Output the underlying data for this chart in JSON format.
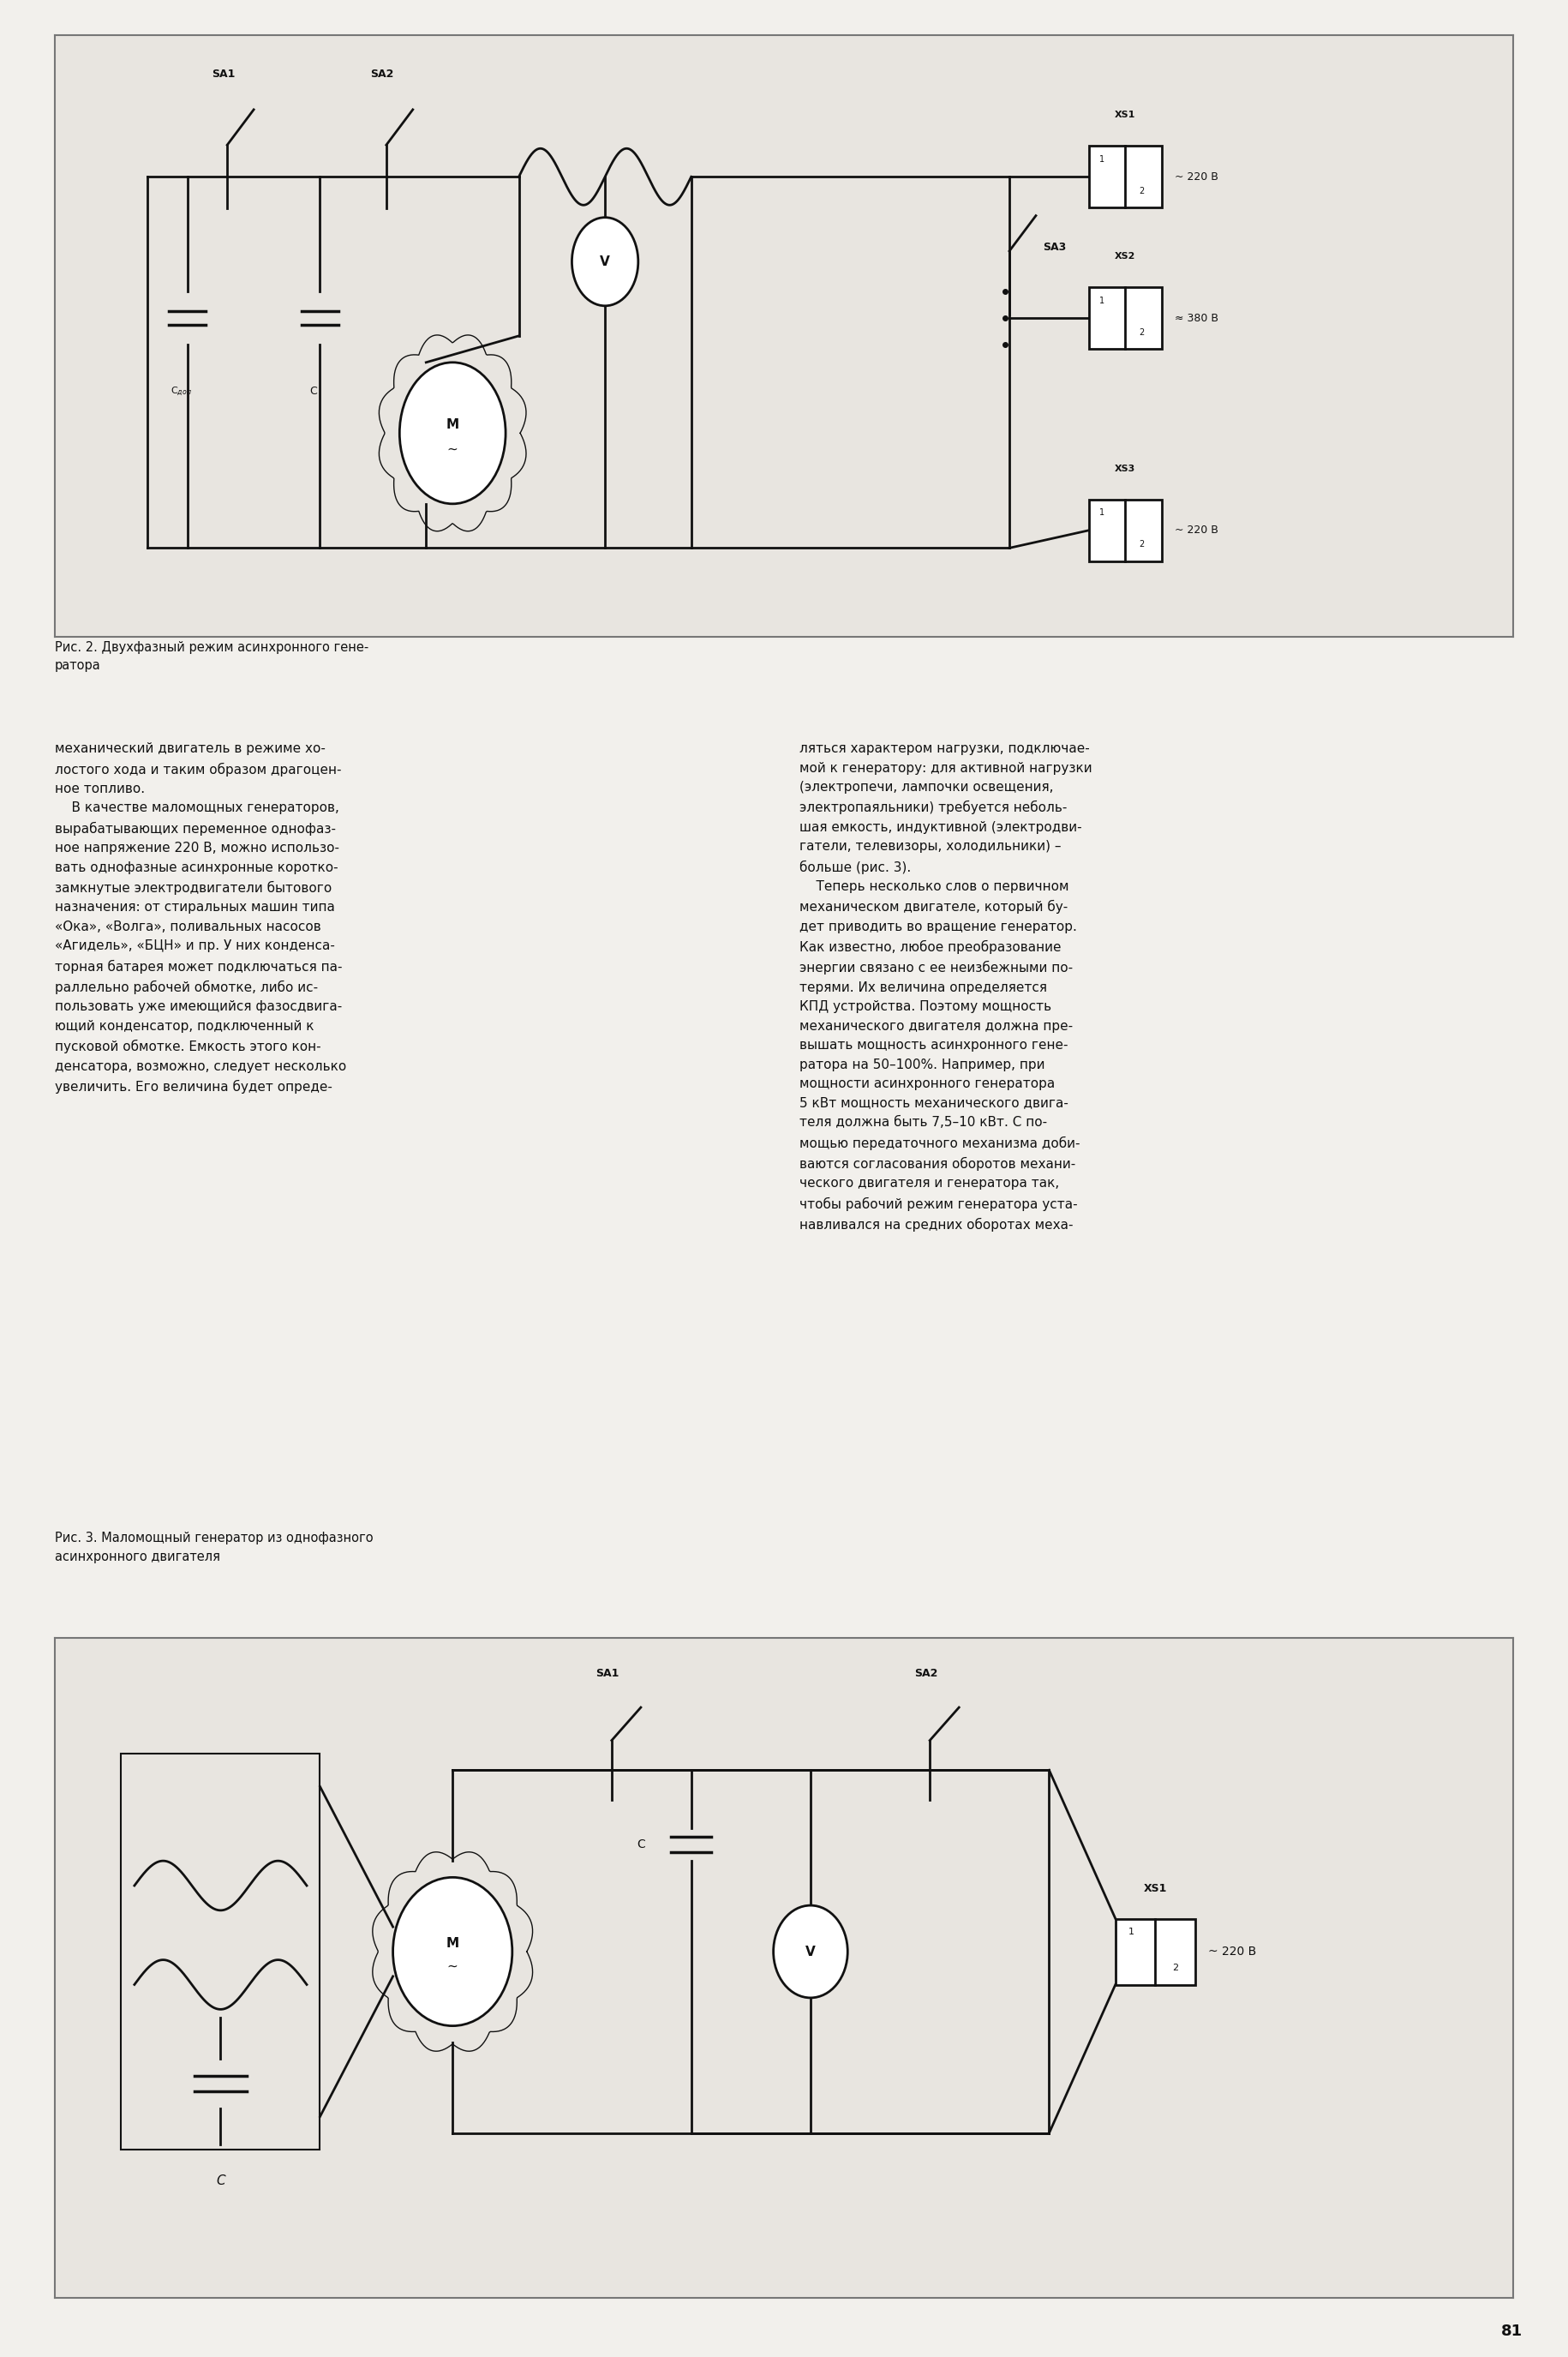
{
  "page_bg": "#f2f0ec",
  "diagram_bg": "#e8e5e0",
  "line_color": "#111111",
  "text_color": "#111111",
  "fig1_caption": "Рис. 2. Двухфазный режим асинхронного гене-\nратора",
  "fig2_caption": "Рис. 3. Маломощный генератор из однофазного\nасинхронного двигателя",
  "page_number": "81",
  "left_text": "механический двигатель в режиме хо-\nлостого хода и таким образом драгоцен-\nное топливо.\n    В качестве маломощных генераторов,\nвырабатывающих переменное однофаз-\nное напряжение 220 В, можно использо-\nвать однофазные асинхронные коротко-\nзамкнутые электродвигатели бытового\nназначения: от стиральных машин типа\n«Ока», «Волга», поливальных насосов\n«Агидель», «БЦН» и пр. У них конденса-\nторная батарея может подключаться па-\nраллельно рабочей обмотке, либо ис-\nпользовать уже имеющийся фазосдвига-\nющий конденсатор, подключенный к\nпусковой обмотке. Емкость этого кон-\nденсатора, возможно, следует несколько\nувеличить. Его величина будет опреде-",
  "right_text": "ляться характером нагрузки, подключае-\nмой к генератору: для активной нагрузки\n(электропечи, лампочки освещения,\nэлектропаяльники) требуется неболь-\nшая емкость, индуктивной (электродви-\nгатели, телевизоры, холодильники) –\nбольше (рис. 3).\n    Теперь несколько слов о первичном\nмеханическом двигателе, который бу-\nдет приводить во вращение генератор.\nКак известно, любое преобразование\nэнергии связано с ее неизбежными по-\nтерями. Их величина определяется\nКПД устройства. Поэтому мощность\nмеханического двигателя должна пре-\nвышать мощность асинхронного гене-\nратора на 50–100%. Например, при\nмощности асинхронного генератора\n5 кВт мощность механического двига-\nтеля должна быть 7,5–10 кВт. С по-\nмощью передаточного механизма доби-\nваются согласования оборотов механи-\nческого двигателя и генератора так,\nчтобы рабочий режим генератора уста-\nнавливался на средних оборотах меха-"
}
